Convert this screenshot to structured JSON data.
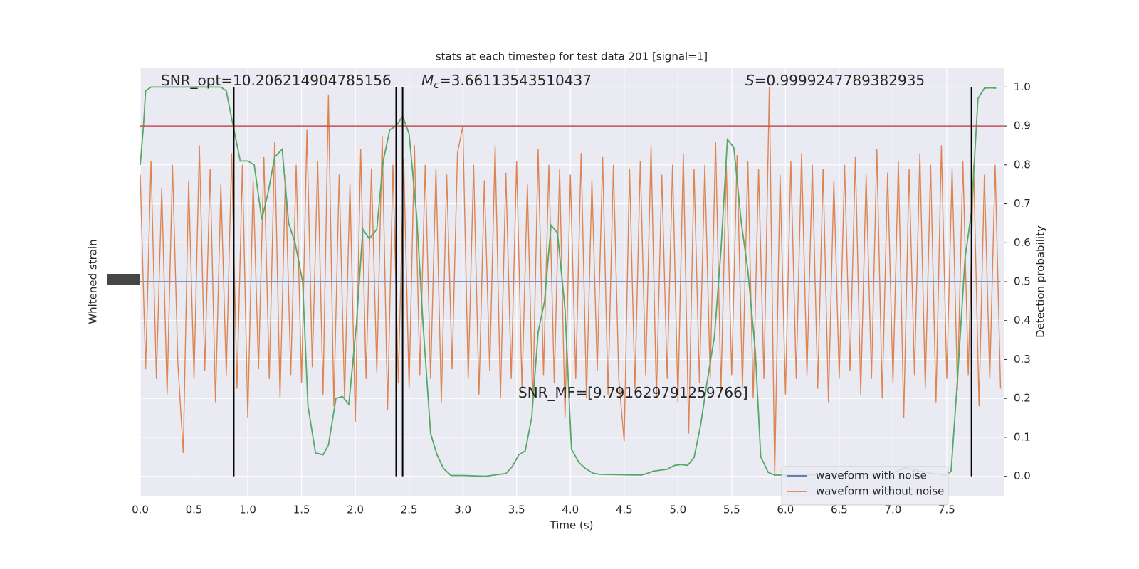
{
  "chart_data": {
    "type": "line",
    "title": "stats at each timestep for test data 201 [signal=1]",
    "xlabel": "Time (s)",
    "ylabel": "Whitened strain",
    "y2label": "Detection probability",
    "xlim": [
      0,
      8.03
    ],
    "ylim": [
      -1.1,
      1.1
    ],
    "y2lim": [
      -0.05,
      1.05
    ],
    "xticks": [
      {
        "value": 0,
        "label": "0.0"
      },
      0.5,
      {
        "value": 1,
        "label": "1.0"
      },
      1.5,
      {
        "value": 2,
        "label": "2.0"
      },
      2.5,
      {
        "value": 3,
        "label": "3.0"
      },
      3.5,
      {
        "value": 4,
        "label": "4.0"
      },
      4.5,
      {
        "value": 5,
        "label": "5.0"
      },
      5.5,
      {
        "value": 6,
        "label": "6.0"
      },
      6.5,
      {
        "value": 7,
        "label": "7.0"
      },
      7.5
    ],
    "y2ticks": [
      {
        "value": 0,
        "label": "0.0"
      },
      0.1,
      0.2,
      0.3,
      0.4,
      0.5,
      0.6,
      0.7,
      0.8,
      0.9,
      {
        "value": 1,
        "label": "1.0"
      }
    ],
    "grid": true,
    "legend": "lower right",
    "x": [
      0,
      0.05,
      0.1,
      0.15,
      0.2,
      0.25,
      0.3,
      0.35,
      0.4,
      0.45,
      0.5,
      0.55,
      0.6,
      0.65,
      0.7,
      0.75,
      0.8,
      0.85,
      0.9,
      0.95,
      1,
      1.05,
      1.1,
      1.15,
      1.2,
      1.25,
      1.3,
      1.35,
      1.4,
      1.45,
      1.5,
      1.55,
      1.6,
      1.65,
      1.7,
      1.75,
      1.8,
      1.85,
      1.9,
      1.95,
      2,
      2.05,
      2.1,
      2.15,
      2.2,
      2.25,
      2.3,
      2.35,
      2.4,
      2.45,
      2.5,
      2.55,
      2.6,
      2.65,
      2.7,
      2.75,
      2.8,
      2.85,
      2.9,
      2.95,
      3,
      3.05,
      3.1,
      3.15,
      3.2,
      3.25,
      3.3,
      3.35,
      3.4,
      3.45,
      3.5,
      3.55,
      3.6,
      3.65,
      3.7,
      3.75,
      3.8,
      3.85,
      3.9,
      3.95,
      4,
      4.05,
      4.1,
      4.15,
      4.2,
      4.25,
      4.3,
      4.35,
      4.4,
      4.45,
      4.5,
      4.55,
      4.6,
      4.65,
      4.7,
      4.75,
      4.8,
      4.85,
      4.9,
      4.95,
      5,
      5.05,
      5.1,
      5.15,
      5.2,
      5.25,
      5.3,
      5.35,
      5.4,
      5.45,
      5.5,
      5.55,
      5.6,
      5.65,
      5.7,
      5.75,
      5.8,
      5.85,
      5.9,
      5.95,
      6,
      6.05,
      6.1,
      6.15,
      6.2,
      6.25,
      6.3,
      6.35,
      6.4,
      6.45,
      6.5,
      6.55,
      6.6,
      6.65,
      6.7,
      6.75,
      6.8,
      6.85,
      6.9,
      6.95,
      7,
      7.05,
      7.1,
      7.15,
      7.2,
      7.25,
      7.3,
      7.35,
      7.4,
      7.45,
      7.5,
      7.55,
      7.6,
      7.65,
      7.7,
      7.75,
      7.8,
      7.85,
      7.9,
      7.95,
      8
    ],
    "series": [
      {
        "name": "waveform with noise",
        "color": "#4c72b0",
        "values": [
          0,
          0,
          0,
          0,
          0,
          0,
          0,
          0,
          0,
          0,
          0,
          0,
          0,
          0,
          0,
          0,
          0,
          0,
          0,
          0,
          0,
          0,
          0,
          0,
          0,
          0,
          0,
          0,
          0,
          0,
          0,
          0,
          0,
          0,
          0,
          0,
          0,
          0,
          0,
          0,
          0,
          0,
          0,
          0,
          0,
          0,
          0,
          0,
          0,
          0,
          0,
          0,
          0,
          0,
          0,
          0,
          0,
          0,
          0,
          0,
          0,
          0,
          0,
          0,
          0,
          0,
          0,
          0,
          0,
          0,
          0,
          0,
          0,
          0,
          0,
          0,
          0,
          0,
          0,
          0,
          0,
          0,
          0,
          0,
          0,
          0,
          0,
          0,
          0,
          0,
          0,
          0,
          0,
          0,
          0,
          0,
          0,
          0,
          0,
          0,
          0,
          0,
          0,
          0,
          0,
          0,
          0,
          0,
          0,
          0,
          0,
          0,
          0,
          0,
          0,
          0,
          0,
          0,
          0,
          0,
          0,
          0,
          0,
          0,
          0,
          0,
          0,
          0,
          0,
          0,
          0,
          0,
          0,
          0,
          0,
          0,
          0,
          0,
          0,
          0,
          0,
          0,
          0,
          0,
          0,
          0,
          0,
          0,
          0,
          0,
          0,
          0,
          0,
          0,
          0,
          0,
          0,
          0,
          0,
          0,
          0
        ]
      },
      {
        "name": "waveform without noise",
        "color": "#dd8452",
        "values": [
          0.55,
          -0.45,
          0.62,
          -0.5,
          0.48,
          -0.58,
          0.6,
          -0.42,
          -0.88,
          0.52,
          -0.5,
          0.7,
          -0.46,
          0.58,
          -0.62,
          0.5,
          -0.48,
          0.66,
          -0.55,
          0.6,
          -0.7,
          0.52,
          -0.45,
          0.64,
          -0.5,
          0.72,
          -0.6,
          0.55,
          -0.48,
          0.6,
          -0.52,
          0.78,
          -0.44,
          0.62,
          -0.58,
          0.96,
          -0.64,
          0.55,
          -0.6,
          0.5,
          -0.72,
          0.68,
          -0.5,
          0.58,
          -0.47,
          0.75,
          -0.66,
          0.6,
          -0.52,
          0.63,
          -0.55,
          0.7,
          -0.48,
          0.6,
          -0.5,
          0.58,
          -0.62,
          0.55,
          -0.45,
          0.66,
          0.8,
          -0.5,
          0.6,
          -0.58,
          0.52,
          -0.46,
          0.7,
          -0.6,
          0.56,
          -0.5,
          0.62,
          -0.55,
          0.5,
          -0.64,
          0.68,
          -0.48,
          0.6,
          -0.52,
          0.58,
          -0.7,
          0.55,
          -0.5,
          0.66,
          -0.6,
          0.52,
          -0.46,
          0.64,
          -0.58,
          0.6,
          -0.5,
          -0.82,
          0.58,
          -0.55,
          0.62,
          -0.48,
          0.7,
          -0.6,
          0.55,
          -0.5,
          0.6,
          -0.62,
          0.66,
          -0.78,
          0.58,
          -0.52,
          0.6,
          -0.5,
          0.72,
          -0.56,
          0.6,
          -0.48,
          0.65,
          -0.55,
          0.62,
          -0.6,
          0.58,
          -0.5,
          1.0,
          -1.0,
          0.55,
          -0.58,
          0.62,
          -0.5,
          0.66,
          -0.48,
          0.6,
          -0.55,
          0.58,
          -0.62,
          0.52,
          -0.5,
          0.6,
          -0.46,
          0.64,
          -0.58,
          0.55,
          -0.5,
          0.68,
          -0.6,
          0.56,
          -0.52,
          0.62,
          -0.7,
          0.58,
          -0.48,
          0.66,
          -0.55,
          0.6,
          -0.62,
          0.7,
          -0.5,
          0.58,
          -0.56,
          0.62,
          -0.48,
          0.6,
          -0.64,
          0.55,
          -0.5,
          0.6,
          -0.55
        ]
      },
      {
        "color": "#55a868",
        "axis": "y2",
        "x": [
          0,
          0.03,
          0.05,
          0.1,
          0.75,
          0.8,
          0.85,
          0.93,
          1.0,
          1.06,
          1.13,
          1.19,
          1.25,
          1.32,
          1.38,
          1.44,
          1.51,
          1.56,
          1.63,
          1.7,
          1.75,
          1.82,
          1.88,
          1.94,
          2.01,
          2.07,
          2.13,
          2.2,
          2.26,
          2.32,
          2.38,
          2.44,
          2.5,
          2.57,
          2.63,
          2.7,
          2.76,
          2.82,
          2.89,
          3.01,
          3.21,
          3.4,
          3.46,
          3.52,
          3.58,
          3.64,
          3.7,
          3.76,
          3.82,
          3.88,
          3.95,
          4.01,
          4.08,
          4.14,
          4.21,
          4.27,
          4.66,
          4.72,
          4.77,
          4.9,
          4.97,
          5.03,
          5.09,
          5.15,
          5.21,
          5.27,
          5.34,
          5.4,
          5.46,
          5.52,
          5.59,
          5.65,
          5.72,
          5.77,
          5.84,
          5.9,
          6.97,
          7.11,
          7.3,
          7.48,
          7.54,
          7.6,
          7.67,
          7.73,
          7.79,
          7.85,
          7.91,
          7.96
        ],
        "values": [
          0.8,
          0.9,
          0.99,
          1.0,
          1.0,
          0.99,
          0.92,
          0.81,
          0.81,
          0.8,
          0.66,
          0.73,
          0.82,
          0.84,
          0.65,
          0.6,
          0.5,
          0.18,
          0.06,
          0.055,
          0.08,
          0.2,
          0.205,
          0.185,
          0.39,
          0.635,
          0.61,
          0.635,
          0.81,
          0.89,
          0.9,
          0.925,
          0.88,
          0.67,
          0.39,
          0.11,
          0.055,
          0.02,
          0.002,
          0.002,
          0.0,
          0.007,
          0.025,
          0.055,
          0.065,
          0.15,
          0.37,
          0.45,
          0.645,
          0.625,
          0.43,
          0.07,
          0.035,
          0.02,
          0.008,
          0.005,
          0.003,
          0.008,
          0.013,
          0.018,
          0.028,
          0.03,
          0.028,
          0.048,
          0.13,
          0.24,
          0.36,
          0.58,
          0.865,
          0.845,
          0.65,
          0.53,
          0.32,
          0.05,
          0.01,
          0.003,
          0.005,
          0.022,
          0.01,
          0.003,
          0.012,
          0.25,
          0.56,
          0.68,
          0.97,
          0.997,
          0.998,
          0.997
        ]
      }
    ],
    "hlines": [
      {
        "value": 0.9,
        "color": "#c44e52",
        "axis": "y2"
      }
    ],
    "vlines": [
      0.87,
      2.38,
      2.44,
      7.73
    ],
    "vline_color": "#000000",
    "annotations": [
      {
        "text": "SNR_opt=10.206214904785156"
      },
      {
        "symbol": "M",
        "subscript": "c",
        "text": "=3.66113543510437"
      },
      {
        "symbol": "S",
        "text": "=0.9999247789382935"
      },
      {
        "text": "SNR_MF=[9.791629791259766]"
      }
    ]
  }
}
